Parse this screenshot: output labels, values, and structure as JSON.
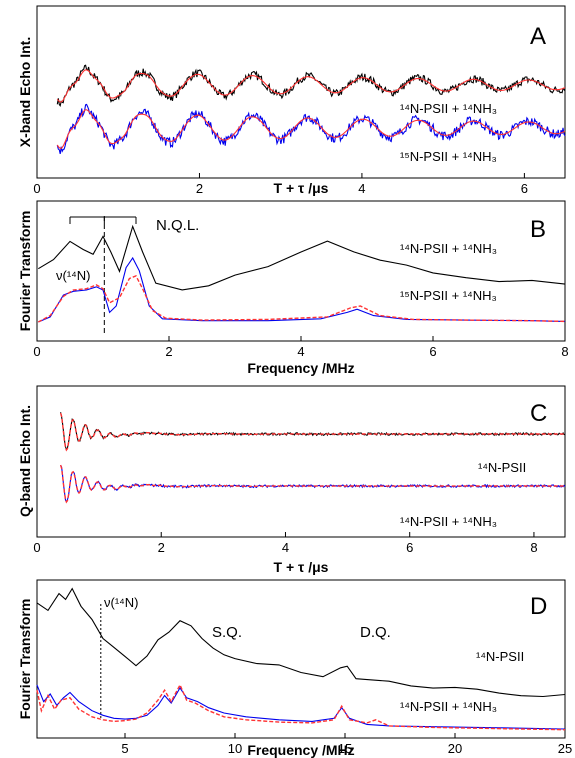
{
  "chart_data": [
    {
      "panel": "A",
      "type": "line",
      "xlabel": "T + τ /μs",
      "ylabel": "X-band Echo Int.",
      "xlim": [
        0,
        6.5
      ],
      "xticks": [
        0,
        2,
        4,
        6
      ],
      "annotations": [
        {
          "id": "a1",
          "text": "¹⁴N-PSII + ¹⁴NH₃"
        },
        {
          "id": "a2",
          "text": "¹⁵N-PSII + ¹⁴NH₃"
        }
      ],
      "series": [
        {
          "color": "#000000",
          "style": "solid",
          "group": "upper",
          "waveform": "eseem",
          "x_start": 0.25,
          "x_end": 6.5
        },
        {
          "color": "#ff3333",
          "style": "solid",
          "group": "upper",
          "waveform": "eseem",
          "x_start": 0.25,
          "x_end": 6.5
        },
        {
          "color": "#0000ee",
          "style": "solid",
          "group": "lower",
          "waveform": "eseem",
          "x_start": 0.25,
          "x_end": 6.5
        },
        {
          "color": "#ff3333",
          "style": "solid",
          "group": "lower",
          "waveform": "eseem",
          "x_start": 0.25,
          "x_end": 6.5
        }
      ]
    },
    {
      "panel": "B",
      "type": "line",
      "xlabel": "Frequency /MHz",
      "ylabel": "Fourier Transform",
      "xlim": [
        0,
        8
      ],
      "xticks": [
        0,
        2,
        4,
        6,
        8
      ],
      "annotations": [
        {
          "id": "b1",
          "text": "N.Q.L."
        },
        {
          "id": "b2",
          "text": "ν(¹⁴N)"
        },
        {
          "id": "b3",
          "text": "¹⁴N-PSII + ¹⁴NH₃"
        },
        {
          "id": "b4",
          "text": "¹⁵N-PSII + ¹⁴NH₃"
        }
      ],
      "marker_line_x": 1.02,
      "nql_bracket": [
        0.5,
        1.02,
        1.5
      ],
      "series": [
        {
          "color": "#000000",
          "style": "solid",
          "group": "upper",
          "points": [
            [
              0.02,
              0.3
            ],
            [
              0.25,
              0.45
            ],
            [
              0.5,
              0.72
            ],
            [
              0.7,
              0.58
            ],
            [
              0.85,
              0.52
            ],
            [
              1.0,
              0.78
            ],
            [
              1.12,
              0.55
            ],
            [
              1.25,
              0.28
            ],
            [
              1.45,
              0.92
            ],
            [
              1.6,
              0.55
            ],
            [
              1.8,
              0.12
            ],
            [
              2.2,
              0.0
            ],
            [
              2.6,
              0.08
            ],
            [
              3.0,
              0.22
            ],
            [
              3.5,
              0.35
            ],
            [
              4.0,
              0.55
            ],
            [
              4.4,
              0.72
            ],
            [
              4.8,
              0.58
            ],
            [
              5.2,
              0.42
            ],
            [
              5.6,
              0.35
            ],
            [
              6.0,
              0.24
            ],
            [
              6.5,
              0.18
            ],
            [
              7.0,
              0.12
            ],
            [
              7.5,
              0.14
            ],
            [
              8.0,
              0.08
            ]
          ]
        },
        {
          "color": "#0000ee",
          "style": "solid",
          "group": "lower",
          "points": [
            [
              0.02,
              0.0
            ],
            [
              0.2,
              0.08
            ],
            [
              0.4,
              0.42
            ],
            [
              0.55,
              0.48
            ],
            [
              0.75,
              0.5
            ],
            [
              0.9,
              0.55
            ],
            [
              1.0,
              0.5
            ],
            [
              1.1,
              0.15
            ],
            [
              1.2,
              0.25
            ],
            [
              1.35,
              0.85
            ],
            [
              1.45,
              1.0
            ],
            [
              1.55,
              0.8
            ],
            [
              1.7,
              0.25
            ],
            [
              1.9,
              0.05
            ],
            [
              2.5,
              0.02
            ],
            [
              3.5,
              0.02
            ],
            [
              4.3,
              0.05
            ],
            [
              4.7,
              0.15
            ],
            [
              4.85,
              0.2
            ],
            [
              5.1,
              0.1
            ],
            [
              5.6,
              0.04
            ],
            [
              6.5,
              0.03
            ],
            [
              7.5,
              0.02
            ],
            [
              8.0,
              0.01
            ]
          ]
        },
        {
          "color": "#ff3333",
          "style": "dashed",
          "group": "lower",
          "points": [
            [
              0.02,
              0.0
            ],
            [
              0.2,
              0.1
            ],
            [
              0.4,
              0.4
            ],
            [
              0.55,
              0.5
            ],
            [
              0.75,
              0.52
            ],
            [
              0.9,
              0.58
            ],
            [
              1.0,
              0.52
            ],
            [
              1.1,
              0.3
            ],
            [
              1.25,
              0.38
            ],
            [
              1.4,
              0.68
            ],
            [
              1.5,
              0.72
            ],
            [
              1.6,
              0.52
            ],
            [
              1.75,
              0.18
            ],
            [
              1.95,
              0.06
            ],
            [
              2.5,
              0.03
            ],
            [
              3.5,
              0.04
            ],
            [
              4.4,
              0.08
            ],
            [
              4.75,
              0.22
            ],
            [
              4.9,
              0.25
            ],
            [
              5.2,
              0.1
            ],
            [
              5.7,
              0.04
            ],
            [
              6.5,
              0.03
            ],
            [
              7.5,
              0.02
            ],
            [
              8.0,
              0.01
            ]
          ]
        }
      ]
    },
    {
      "panel": "C",
      "type": "line",
      "xlabel": "T + τ /μs",
      "ylabel": "Q-band Echo Int.",
      "xlim": [
        0,
        8.5
      ],
      "xticks": [
        0,
        2,
        4,
        6,
        8
      ],
      "annotations": [
        {
          "id": "c1",
          "text": "¹⁴N-PSII"
        },
        {
          "id": "c2",
          "text": "¹⁴N-PSII + ¹⁴NH₃"
        }
      ],
      "series": [
        {
          "color": "#000000",
          "style": "solid",
          "group": "upper",
          "waveform": "qband",
          "x_start": 0.38,
          "x_end": 8.5
        },
        {
          "color": "#ff3333",
          "style": "dashed",
          "group": "upper",
          "waveform": "qband",
          "x_start": 0.38,
          "x_end": 8.5
        },
        {
          "color": "#0000ee",
          "style": "solid",
          "group": "lower",
          "waveform": "qband",
          "x_start": 0.38,
          "x_end": 8.5
        },
        {
          "color": "#ff3333",
          "style": "dashed",
          "group": "lower",
          "waveform": "qband",
          "x_start": 0.38,
          "x_end": 8.5
        }
      ]
    },
    {
      "panel": "D",
      "type": "line",
      "xlabel": "Frequency /MHz",
      "ylabel": "Fourier Transform",
      "xlim": [
        1,
        25
      ],
      "xticks": [
        5,
        10,
        15,
        20,
        25
      ],
      "annotations": [
        {
          "id": "d1",
          "text": "ν(¹⁴N)"
        },
        {
          "id": "d2",
          "text": "S.Q."
        },
        {
          "id": "d3",
          "text": "D.Q."
        },
        {
          "id": "d4",
          "text": "¹⁴N-PSII"
        },
        {
          "id": "d5",
          "text": "¹⁴N-PSII + ¹⁴NH₃"
        }
      ],
      "marker_line_x": 3.9,
      "series": [
        {
          "color": "#000000",
          "style": "solid",
          "group": "upper",
          "points": [
            [
              1.0,
              0.88
            ],
            [
              1.5,
              0.8
            ],
            [
              2.0,
              0.94
            ],
            [
              2.3,
              0.88
            ],
            [
              2.6,
              1.0
            ],
            [
              3.0,
              0.82
            ],
            [
              3.5,
              0.7
            ],
            [
              4.0,
              0.55
            ],
            [
              4.5,
              0.45
            ],
            [
              5.0,
              0.38
            ],
            [
              5.5,
              0.32
            ],
            [
              6.0,
              0.38
            ],
            [
              6.5,
              0.52
            ],
            [
              7.0,
              0.62
            ],
            [
              7.5,
              0.7
            ],
            [
              8.0,
              0.65
            ],
            [
              8.5,
              0.55
            ],
            [
              9.0,
              0.48
            ],
            [
              9.5,
              0.4
            ],
            [
              10.0,
              0.38
            ],
            [
              11.0,
              0.34
            ],
            [
              12.0,
              0.3
            ],
            [
              13.0,
              0.25
            ],
            [
              14.0,
              0.22
            ],
            [
              14.8,
              0.3
            ],
            [
              15.1,
              0.32
            ],
            [
              15.5,
              0.2
            ],
            [
              16.0,
              0.18
            ],
            [
              17.0,
              0.16
            ],
            [
              18.0,
              0.14
            ],
            [
              19.0,
              0.12
            ],
            [
              20.0,
              0.1
            ],
            [
              21.0,
              0.08
            ],
            [
              22.0,
              0.07
            ],
            [
              23.0,
              0.05
            ],
            [
              24.0,
              0.05
            ],
            [
              25.0,
              0.04
            ]
          ]
        },
        {
          "color": "#0000ee",
          "style": "solid",
          "group": "lower",
          "points": [
            [
              1.0,
              0.62
            ],
            [
              1.3,
              0.4
            ],
            [
              1.6,
              0.5
            ],
            [
              1.9,
              0.35
            ],
            [
              2.2,
              0.45
            ],
            [
              2.5,
              0.52
            ],
            [
              2.9,
              0.4
            ],
            [
              3.5,
              0.28
            ],
            [
              4.0,
              0.22
            ],
            [
              4.5,
              0.18
            ],
            [
              5.0,
              0.17
            ],
            [
              5.5,
              0.18
            ],
            [
              6.0,
              0.22
            ],
            [
              6.5,
              0.35
            ],
            [
              6.8,
              0.48
            ],
            [
              7.1,
              0.38
            ],
            [
              7.5,
              0.58
            ],
            [
              7.8,
              0.45
            ],
            [
              8.3,
              0.4
            ],
            [
              8.8,
              0.32
            ],
            [
              9.5,
              0.25
            ],
            [
              10.5,
              0.2
            ],
            [
              12.0,
              0.16
            ],
            [
              13.5,
              0.14
            ],
            [
              14.5,
              0.18
            ],
            [
              14.85,
              0.32
            ],
            [
              15.2,
              0.18
            ],
            [
              16.0,
              0.1
            ],
            [
              17.0,
              0.08
            ],
            [
              19.0,
              0.07
            ],
            [
              21.0,
              0.06
            ],
            [
              23.0,
              0.05
            ],
            [
              25.0,
              0.04
            ]
          ]
        },
        {
          "color": "#ff3333",
          "style": "dashed",
          "group": "lower",
          "points": [
            [
              1.0,
              0.55
            ],
            [
              1.2,
              0.28
            ],
            [
              1.5,
              0.48
            ],
            [
              1.8,
              0.3
            ],
            [
              2.1,
              0.42
            ],
            [
              2.5,
              0.45
            ],
            [
              2.9,
              0.3
            ],
            [
              3.5,
              0.2
            ],
            [
              4.0,
              0.16
            ],
            [
              4.5,
              0.14
            ],
            [
              5.0,
              0.15
            ],
            [
              5.5,
              0.17
            ],
            [
              6.0,
              0.25
            ],
            [
              6.5,
              0.42
            ],
            [
              6.8,
              0.55
            ],
            [
              7.1,
              0.4
            ],
            [
              7.5,
              0.62
            ],
            [
              7.8,
              0.42
            ],
            [
              8.2,
              0.38
            ],
            [
              8.8,
              0.28
            ],
            [
              9.5,
              0.2
            ],
            [
              10.5,
              0.16
            ],
            [
              12.0,
              0.13
            ],
            [
              13.5,
              0.12
            ],
            [
              14.5,
              0.16
            ],
            [
              14.85,
              0.34
            ],
            [
              15.2,
              0.16
            ],
            [
              16.0,
              0.12
            ],
            [
              16.4,
              0.16
            ],
            [
              17.0,
              0.08
            ],
            [
              19.0,
              0.06
            ],
            [
              21.0,
              0.05
            ],
            [
              23.0,
              0.04
            ],
            [
              25.0,
              0.03
            ]
          ]
        }
      ]
    }
  ],
  "panels": {
    "A": {
      "letter": "A"
    },
    "B": {
      "letter": "B"
    },
    "C": {
      "letter": "C"
    },
    "D": {
      "letter": "D"
    }
  }
}
